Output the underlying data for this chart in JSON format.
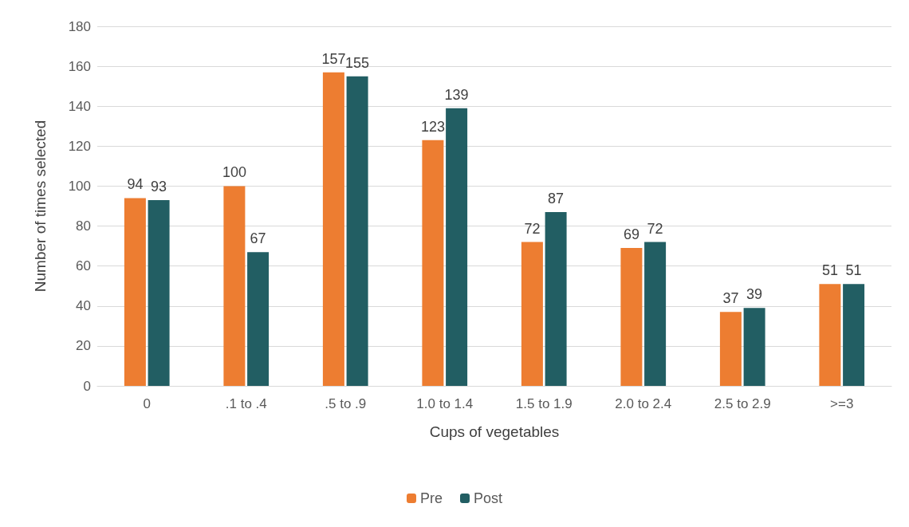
{
  "chart_data": {
    "type": "bar",
    "xlabel": "Cups of vegetables",
    "ylabel": "Number of times selected",
    "categories": [
      "0",
      ".1 to .4",
      ".5 to .9",
      "1.0 to 1.4",
      "1.5 to 1.9",
      "2.0 to 2.4",
      "2.5 to 2.9",
      ">=3"
    ],
    "series": [
      {
        "name": "Pre",
        "color": "#ed7d31",
        "values": [
          94,
          100,
          157,
          123,
          72,
          69,
          37,
          51
        ]
      },
      {
        "name": "Post",
        "color": "#225e63",
        "values": [
          93,
          67,
          155,
          139,
          87,
          72,
          39,
          51
        ]
      }
    ],
    "ylim": [
      0,
      180
    ],
    "yticks": [
      0,
      20,
      40,
      60,
      80,
      100,
      120,
      140,
      160,
      180
    ],
    "grid": "y",
    "legend": "bottom",
    "data_labels": true
  }
}
